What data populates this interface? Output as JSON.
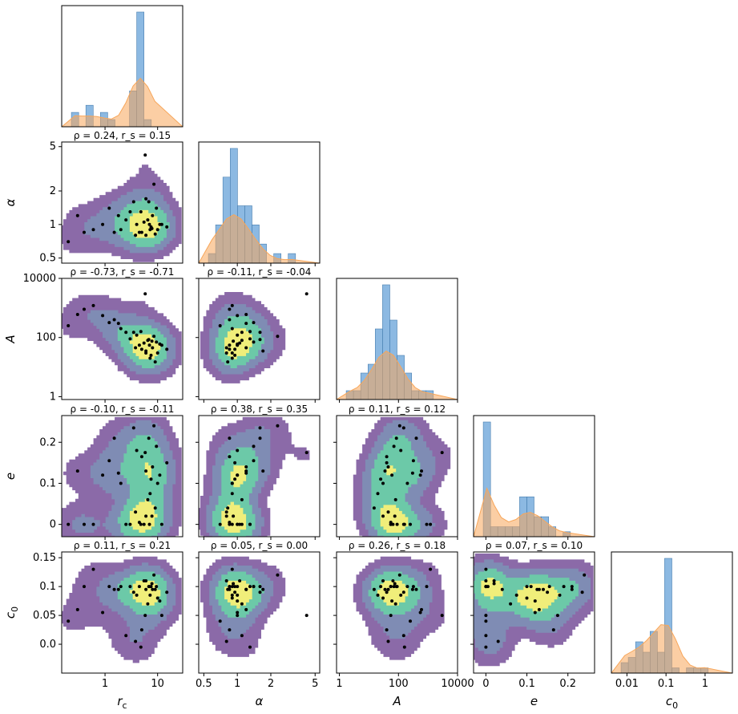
{
  "chart_data": {
    "type": "corner",
    "variables": [
      {
        "key": "rc",
        "label": "r_c",
        "scale": "log10",
        "range": [
          0.15,
          30
        ],
        "ticks": [
          1,
          10
        ],
        "tick_labels": [
          "1",
          "10"
        ]
      },
      {
        "key": "alpha",
        "label": "α",
        "scale": "log10",
        "range": [
          0.45,
          5.5
        ],
        "ticks": [
          0.5,
          1,
          2,
          5
        ],
        "tick_labels": [
          "0.5",
          "1",
          "2",
          "5"
        ]
      },
      {
        "key": "A",
        "label": "A",
        "scale": "log10",
        "range": [
          0.8,
          10000
        ],
        "ticks": [
          1,
          100,
          10000
        ],
        "tick_labels": [
          "1",
          "100",
          "10000"
        ]
      },
      {
        "key": "e",
        "label": "e",
        "scale": "linear",
        "range": [
          -0.03,
          0.265
        ],
        "ticks": [
          0,
          0.1,
          0.2
        ],
        "tick_labels": [
          "0",
          "0.1",
          "0.2"
        ]
      },
      {
        "key": "c0",
        "label": "c_0",
        "scale": "mixed",
        "range": [
          -0.05,
          0.16
        ],
        "ticks": [
          0,
          0.05,
          0.1,
          0.15
        ],
        "tick_labels": [
          "0.0",
          "0.05",
          "0.1",
          "0.15"
        ],
        "diag_ticks": [
          0.01,
          0.1,
          1
        ],
        "diag_tick_labels": [
          "0.01",
          "0.1",
          "1"
        ],
        "diag_range": [
          0.004,
          5
        ]
      }
    ],
    "samples": [
      {
        "rc": 5.8,
        "alpha": 4.2,
        "A": 3000,
        "e": 0.175,
        "c0": 0.05
      },
      {
        "rc": 3.5,
        "alpha": 1.6,
        "A": 150,
        "e": 0.235,
        "c0": 0.09
      },
      {
        "rc": 7.0,
        "alpha": 1.0,
        "A": 55,
        "e": 0.0,
        "c0": 0.1
      },
      {
        "rc": 6.0,
        "alpha": 0.8,
        "A": 30,
        "e": 0.02,
        "c0": 0.11
      },
      {
        "rc": 8.0,
        "alpha": 1.2,
        "A": 45,
        "e": 0.14,
        "c0": 0.095
      },
      {
        "rc": 1.2,
        "alpha": 1.4,
        "A": 320,
        "e": 0.155,
        "c0": 0.1
      },
      {
        "rc": 0.3,
        "alpha": 1.2,
        "A": 600,
        "e": 0.13,
        "c0": 0.06
      },
      {
        "rc": 9.0,
        "alpha": 0.82,
        "A": 15,
        "e": 0.04,
        "c0": 0.095
      },
      {
        "rc": 4.0,
        "alpha": 1.0,
        "A": 120,
        "e": 0.18,
        "c0": 0.085
      },
      {
        "rc": 0.6,
        "alpha": 0.9,
        "A": 1200,
        "e": 0.0,
        "c0": 0.13
      },
      {
        "rc": 2.0,
        "alpha": 0.9,
        "A": 200,
        "e": 0.1,
        "c0": 0.1
      },
      {
        "rc": 11.0,
        "alpha": 1.0,
        "A": 60,
        "e": 0.12,
        "c0": 0.075
      },
      {
        "rc": 6.5,
        "alpha": 1.1,
        "A": 80,
        "e": 0.06,
        "c0": 0.07
      },
      {
        "rc": 1.5,
        "alpha": 0.85,
        "A": 400,
        "e": 0.21,
        "c0": 0.095
      },
      {
        "rc": 3.0,
        "alpha": 1.3,
        "A": 90,
        "e": 0.0,
        "c0": 0.1
      },
      {
        "rc": 7.5,
        "alpha": 0.95,
        "A": 25,
        "e": 0.11,
        "c0": 0.1
      },
      {
        "rc": 5.0,
        "alpha": 0.85,
        "A": 40,
        "e": 0.165,
        "c0": 0.025
      },
      {
        "rc": 9.5,
        "alpha": 1.4,
        "A": 70,
        "e": 0.19,
        "c0": 0.1
      },
      {
        "rc": 0.2,
        "alpha": 0.7,
        "A": 250,
        "e": 0.0,
        "c0": 0.04
      },
      {
        "rc": 6.0,
        "alpha": 1.7,
        "A": 35,
        "e": 0.13,
        "c0": 0.095
      },
      {
        "rc": 2.5,
        "alpha": 1.1,
        "A": 150,
        "e": 0.0,
        "c0": 0.015
      },
      {
        "rc": 15.0,
        "alpha": 0.95,
        "A": 40,
        "e": 0.15,
        "c0": 0.09
      },
      {
        "rc": 4.5,
        "alpha": 0.85,
        "A": 55,
        "e": 0.005,
        "c0": 0.1
      },
      {
        "rc": 8.5,
        "alpha": 2.3,
        "A": 110,
        "e": 0.24,
        "c0": 0.12
      },
      {
        "rc": 0.9,
        "alpha": 1.0,
        "A": 550,
        "e": 0.12,
        "c0": 0.055
      },
      {
        "rc": 7.2,
        "alpha": 0.9,
        "A": 20,
        "e": 0.075,
        "c0": 0.085
      },
      {
        "rc": 5.5,
        "alpha": 1.05,
        "A": 65,
        "e": 0.0,
        "c0": 0.11
      },
      {
        "rc": 10.0,
        "alpha": 0.9,
        "A": 30,
        "e": 0.1,
        "c0": 0.08
      },
      {
        "rc": 3.8,
        "alpha": 0.8,
        "A": 45,
        "e": 0.03,
        "c0": 0.005
      },
      {
        "rc": 12.0,
        "alpha": 1.0,
        "A": 55,
        "e": 0.0,
        "c0": 0.05
      },
      {
        "rc": 6.8,
        "alpha": 1.6,
        "A": 85,
        "e": 0.21,
        "c0": 0.1
      },
      {
        "rc": 4.8,
        "alpha": 1.3,
        "A": 160,
        "e": 0.0,
        "c0": -0.005
      },
      {
        "rc": 0.4,
        "alpha": 0.85,
        "A": 900,
        "e": 0.0,
        "c0": 0.1
      },
      {
        "rc": 1.8,
        "alpha": 1.2,
        "A": 300,
        "e": 0.125,
        "c0": 0.095
      },
      {
        "rc": 7.8,
        "alpha": 0.92,
        "A": 75,
        "e": 0.02,
        "c0": 0.105
      }
    ],
    "hist_counts": {
      "rc": [
        2,
        0,
        3,
        0,
        2,
        1,
        0,
        0,
        5,
        16,
        1,
        0
      ],
      "alpha": [
        1,
        4,
        9,
        12,
        6,
        6,
        4,
        2,
        0,
        1,
        0,
        1
      ],
      "A": [
        1,
        1,
        3,
        4,
        8,
        13,
        9,
        5,
        3,
        1,
        1,
        1
      ],
      "e": [
        23,
        2,
        2,
        2,
        2,
        8,
        8,
        4,
        4,
        2,
        0,
        1
      ],
      "c0": [
        2,
        3,
        6,
        4,
        8,
        4,
        22,
        1,
        0,
        1,
        1,
        1
      ]
    },
    "correlations": [
      {
        "row": 1,
        "col": 0,
        "text": "ρ = 0.24, r_s = 0.15"
      },
      {
        "row": 2,
        "col": 0,
        "text": "ρ = -0.73, r_s = -0.71"
      },
      {
        "row": 2,
        "col": 1,
        "text": "ρ = -0.11, r_s = -0.04"
      },
      {
        "row": 3,
        "col": 0,
        "text": "ρ = -0.10, r_s = -0.11"
      },
      {
        "row": 3,
        "col": 1,
        "text": "ρ = 0.38, r_s = 0.35"
      },
      {
        "row": 3,
        "col": 2,
        "text": "ρ = 0.11, r_s = 0.12"
      },
      {
        "row": 4,
        "col": 0,
        "text": "ρ = 0.11, r_s = 0.21"
      },
      {
        "row": 4,
        "col": 1,
        "text": "ρ = 0.05, r_s = 0.00"
      },
      {
        "row": 4,
        "col": 2,
        "text": "ρ = 0.26, r_s = 0.18"
      },
      {
        "row": 4,
        "col": 3,
        "text": "ρ = 0.07, r_s = 0.10"
      }
    ],
    "colors": {
      "hist": "#5b9bd5",
      "kde": "#f7a65a",
      "contour": [
        "#8b6aa8",
        "#7f8cb4",
        "#6cc9a8",
        "#f0ee7a"
      ],
      "point": "#000000"
    }
  }
}
